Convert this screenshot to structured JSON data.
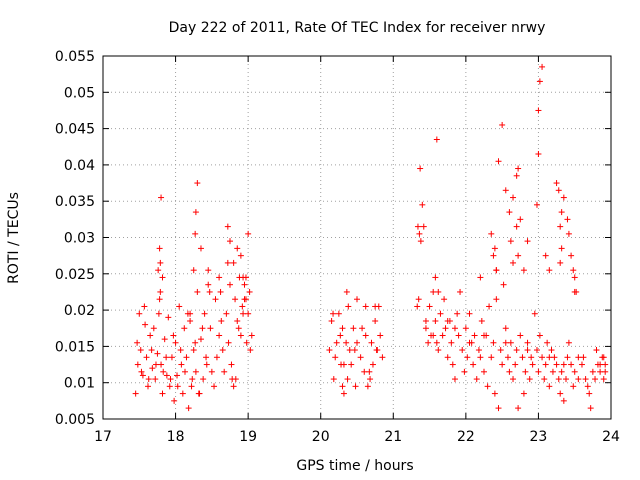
{
  "chart_data": {
    "type": "scatter",
    "title": "Day 222 of 2011, Rate Of TEC Index for receiver nrwy",
    "xlabel": "GPS time / hours",
    "ylabel": "ROTI / TECUs",
    "xlim": [
      17,
      24
    ],
    "ylim": [
      0.005,
      0.055
    ],
    "xticks": [
      17,
      18,
      19,
      20,
      21,
      22,
      23,
      24
    ],
    "xtick_labels": [
      "17",
      "18",
      "19",
      "20",
      "21",
      "22",
      "23",
      "24"
    ],
    "yticks": [
      0.005,
      0.01,
      0.015,
      0.02,
      0.025,
      0.03,
      0.035,
      0.04,
      0.045,
      0.05,
      0.055
    ],
    "ytick_labels": [
      "0.005",
      "0.01",
      "0.015",
      "0.02",
      "0.025",
      "0.03",
      "0.035",
      "0.04",
      "0.045",
      "0.05",
      "0.055"
    ],
    "grid": true,
    "marker": "+",
    "color": "#ff0000",
    "series": [
      {
        "name": "ROTI",
        "x": [
          17.45,
          17.48,
          17.5,
          17.52,
          17.55,
          17.58,
          17.6,
          17.62,
          17.65,
          17.68,
          17.7,
          17.72,
          17.75,
          17.78,
          17.8,
          17.82,
          17.85,
          17.88,
          17.9,
          17.92,
          17.95,
          17.98,
          18.0,
          18.02,
          18.05,
          18.08,
          18.1,
          18.12,
          18.15,
          18.18,
          18.2,
          18.22,
          18.25,
          18.28,
          18.3,
          18.32,
          18.35,
          18.38,
          18.4,
          18.42,
          18.45,
          18.48,
          18.5,
          18.55,
          18.6,
          18.65,
          18.7,
          18.72,
          18.75,
          18.78,
          18.8,
          18.82,
          18.85,
          18.88,
          18.9,
          18.92,
          18.95,
          18.98,
          19.0,
          19.02,
          19.05,
          17.47,
          17.53,
          17.57,
          17.63,
          17.67,
          17.73,
          17.77,
          17.83,
          17.87,
          17.93,
          17.97,
          18.03,
          18.07,
          18.13,
          18.17,
          18.23,
          18.27,
          18.33,
          18.37,
          18.43,
          18.47,
          18.53,
          18.57,
          18.63,
          18.67,
          18.73,
          18.77,
          18.83,
          18.87,
          18.93,
          18.97,
          19.03,
          17.8,
          17.78,
          17.79,
          17.82,
          18.3,
          18.28,
          18.27,
          18.72,
          18.75,
          18.8,
          18.85,
          18.95,
          18.97,
          19.0,
          17.76,
          17.79,
          18.2,
          18.25,
          18.35,
          18.45,
          18.6,
          18.62,
          18.9,
          18.93,
          20.12,
          20.15,
          20.18,
          20.2,
          20.22,
          20.25,
          20.28,
          20.3,
          20.32,
          20.35,
          20.38,
          20.4,
          20.42,
          20.45,
          20.48,
          20.5,
          20.55,
          20.6,
          20.62,
          20.65,
          20.68,
          20.7,
          20.72,
          20.75,
          20.78,
          20.8,
          20.82,
          20.85,
          20.17,
          20.27,
          20.37,
          20.47,
          20.57,
          20.67,
          20.77,
          20.3,
          20.32,
          20.36,
          20.5,
          20.62,
          20.75,
          21.33,
          21.35,
          21.37,
          21.4,
          21.42,
          21.45,
          21.48,
          21.5,
          21.52,
          21.55,
          21.58,
          21.6,
          21.62,
          21.65,
          21.68,
          21.7,
          21.72,
          21.75,
          21.78,
          21.8,
          21.82,
          21.85,
          21.88,
          21.9,
          21.92,
          21.95,
          21.98,
          22.0,
          22.02,
          22.05,
          22.08,
          22.1,
          22.12,
          22.15,
          22.18,
          22.2,
          22.22,
          22.25,
          22.28,
          22.3,
          22.32,
          22.35,
          22.38,
          22.4,
          22.42,
          22.45,
          22.48,
          22.5,
          22.52,
          22.55,
          22.58,
          22.6,
          22.62,
          22.65,
          22.68,
          22.7,
          22.72,
          22.75,
          22.78,
          22.8,
          22.82,
          22.85,
          22.88,
          22.9,
          22.92,
          22.95,
          22.98,
          23.0,
          23.02,
          23.05,
          23.08,
          23.1,
          23.12,
          23.15,
          23.18,
          23.2,
          23.22,
          23.25,
          23.28,
          23.3,
          23.32,
          23.35,
          23.38,
          23.4,
          23.42,
          23.45,
          23.48,
          23.5,
          23.55,
          23.6,
          23.62,
          23.65,
          23.68,
          23.7,
          23.72,
          23.75,
          23.78,
          23.8,
          23.82,
          23.85,
          23.88,
          23.9,
          23.92,
          21.34,
          21.36,
          21.38,
          21.6,
          21.58,
          21.62,
          22.2,
          22.35,
          22.42,
          22.45,
          22.5,
          22.55,
          22.6,
          22.65,
          22.7,
          22.72,
          22.75,
          22.8,
          22.85,
          22.98,
          23.0,
          23.0,
          23.02,
          23.05,
          23.1,
          23.15,
          23.25,
          23.28,
          23.3,
          23.32,
          23.35,
          23.4,
          23.42,
          23.45,
          23.48,
          23.5,
          22.38,
          22.4,
          22.42,
          22.62,
          22.65,
          22.7,
          22.72,
          23.3,
          23.32,
          23.5,
          23.52,
          23.8,
          23.85,
          23.9,
          23.92,
          21.45,
          21.55,
          21.75,
          21.85,
          22.05,
          22.25,
          22.55,
          22.85,
          23.15,
          23.35,
          23.55
        ],
        "y": [
          0.0085,
          0.0125,
          0.0195,
          0.0145,
          0.011,
          0.018,
          0.0135,
          0.0095,
          0.0165,
          0.012,
          0.0175,
          0.0105,
          0.014,
          0.0215,
          0.0125,
          0.0085,
          0.016,
          0.011,
          0.019,
          0.0095,
          0.0135,
          0.0075,
          0.0155,
          0.011,
          0.0205,
          0.0125,
          0.0085,
          0.0175,
          0.0135,
          0.0065,
          0.0185,
          0.0095,
          0.0145,
          0.0115,
          0.0225,
          0.0085,
          0.016,
          0.0105,
          0.0195,
          0.0135,
          0.0255,
          0.0175,
          0.0115,
          0.0215,
          0.0165,
          0.0145,
          0.0195,
          0.0265,
          0.0235,
          0.0105,
          0.0095,
          0.0215,
          0.0185,
          0.0245,
          0.0165,
          0.0205,
          0.0235,
          0.0155,
          0.0195,
          0.0225,
          0.0165,
          0.0155,
          0.0115,
          0.0205,
          0.0105,
          0.0145,
          0.0125,
          0.0195,
          0.0115,
          0.0135,
          0.0105,
          0.0165,
          0.0095,
          0.0145,
          0.0115,
          0.0195,
          0.0105,
          0.0155,
          0.0085,
          0.0175,
          0.0125,
          0.0225,
          0.0095,
          0.0135,
          0.0185,
          0.0115,
          0.0155,
          0.0125,
          0.0105,
          0.0175,
          0.0245,
          0.0215,
          0.0145,
          0.0355,
          0.0285,
          0.0265,
          0.0245,
          0.0375,
          0.0335,
          0.0305,
          0.0315,
          0.0295,
          0.0265,
          0.0285,
          0.0215,
          0.0245,
          0.0305,
          0.0255,
          0.0225,
          0.0195,
          0.0255,
          0.0285,
          0.0235,
          0.0245,
          0.0225,
          0.0275,
          0.0195,
          0.0145,
          0.0185,
          0.0105,
          0.0135,
          0.0155,
          0.0195,
          0.0125,
          0.0175,
          0.0085,
          0.0155,
          0.0205,
          0.0145,
          0.0125,
          0.0175,
          0.0095,
          0.0155,
          0.0135,
          0.0115,
          0.0165,
          0.0095,
          0.0105,
          0.0155,
          0.0125,
          0.0185,
          0.0145,
          0.0205,
          0.0165,
          0.0135,
          0.0195,
          0.0165,
          0.0105,
          0.0145,
          0.0175,
          0.0115,
          0.0145,
          0.0095,
          0.0125,
          0.0225,
          0.0215,
          0.0205,
          0.0205,
          0.0205,
          0.0215,
          0.0395,
          0.0345,
          0.0315,
          0.0185,
          0.0155,
          0.0205,
          0.0165,
          0.0225,
          0.0185,
          0.0155,
          0.0145,
          0.0195,
          0.0165,
          0.0215,
          0.0175,
          0.0135,
          0.0185,
          0.0155,
          0.0125,
          0.0105,
          0.0195,
          0.0165,
          0.0225,
          0.0145,
          0.0115,
          0.0175,
          0.0135,
          0.0195,
          0.0155,
          0.0125,
          0.0165,
          0.0105,
          0.0145,
          0.0135,
          0.0185,
          0.0115,
          0.0165,
          0.0095,
          0.0205,
          0.0135,
          0.0155,
          0.0085,
          0.0215,
          0.0065,
          0.0145,
          0.0125,
          0.0235,
          0.0175,
          0.0135,
          0.0115,
          0.0155,
          0.0105,
          0.0125,
          0.0145,
          0.0065,
          0.0165,
          0.0135,
          0.0085,
          0.0115,
          0.0155,
          0.0105,
          0.0135,
          0.0125,
          0.0195,
          0.0145,
          0.0115,
          0.0165,
          0.0135,
          0.0105,
          0.0125,
          0.0155,
          0.0095,
          0.0145,
          0.0115,
          0.0135,
          0.0125,
          0.0105,
          0.0085,
          0.0115,
          0.0075,
          0.0105,
          0.0135,
          0.0155,
          0.0125,
          0.0095,
          0.0115,
          0.0105,
          0.0125,
          0.0135,
          0.0105,
          0.0095,
          0.0085,
          0.0065,
          0.0115,
          0.0105,
          0.0145,
          0.0125,
          0.0115,
          0.0135,
          0.0105,
          0.0125,
          0.0315,
          0.0305,
          0.0295,
          0.0435,
          0.0245,
          0.0225,
          0.0245,
          0.0305,
          0.0255,
          0.0405,
          0.0455,
          0.0365,
          0.0335,
          0.0355,
          0.0385,
          0.0395,
          0.0325,
          0.0255,
          0.0295,
          0.0345,
          0.0415,
          0.0475,
          0.0515,
          0.0535,
          0.0275,
          0.0255,
          0.0375,
          0.0365,
          0.0315,
          0.0335,
          0.0355,
          0.0325,
          0.0305,
          0.0275,
          0.0255,
          0.0225,
          0.0275,
          0.0285,
          0.0255,
          0.0295,
          0.0265,
          0.0315,
          0.0275,
          0.0265,
          0.0285,
          0.0245,
          0.0225,
          0.0145,
          0.0125,
          0.0135,
          0.0115,
          0.0175,
          0.0165,
          0.0185,
          0.0175,
          0.0155,
          0.0165,
          0.0155,
          0.0145,
          0.0135,
          0.0125,
          0.0135
        ]
      }
    ]
  }
}
